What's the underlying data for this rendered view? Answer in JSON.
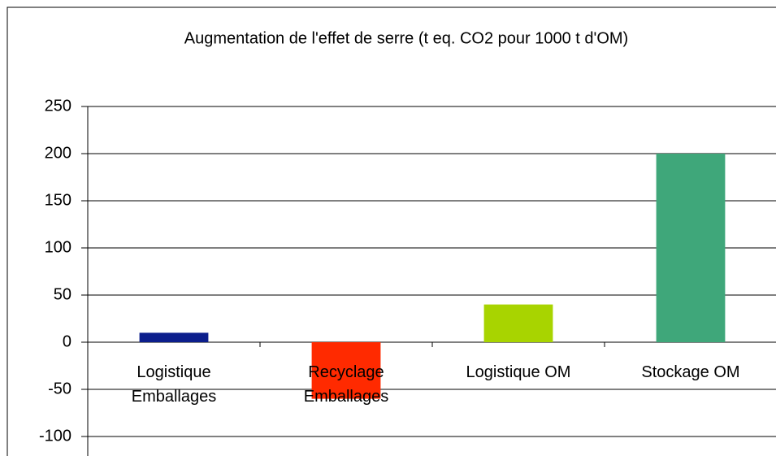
{
  "chart_data": {
    "type": "bar",
    "title": "Augmentation de l'effet de serre (t eq. CO2 pour 1000 t d'OM)",
    "categories": [
      "Logistique Emballages",
      "Recyclage Emballages",
      "Logistique OM",
      "Stockage OM"
    ],
    "values": [
      10,
      -60,
      40,
      200
    ],
    "colors": [
      "#0c1e8c",
      "#ff2a00",
      "#a8d400",
      "#3fa77a"
    ],
    "ylim": [
      -100,
      250
    ],
    "yticks": [
      -100,
      -50,
      0,
      50,
      100,
      150,
      200,
      250
    ],
    "grid": true
  }
}
